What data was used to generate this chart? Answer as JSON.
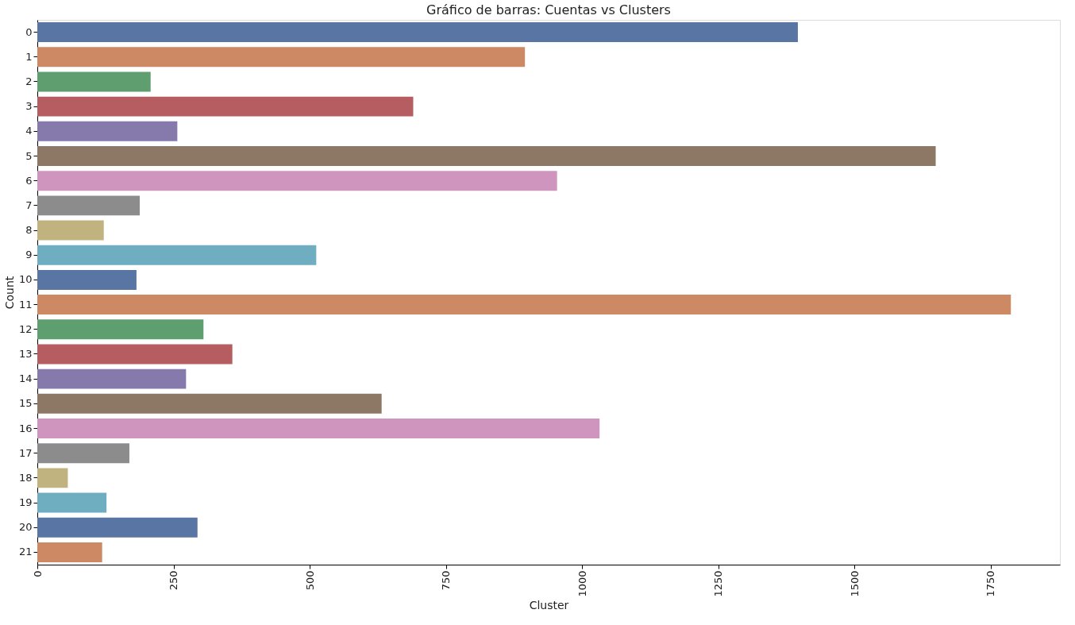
{
  "chart_data": {
    "type": "bar",
    "orientation": "horizontal",
    "title": "Gráfico de barras: Cuentas vs Clusters",
    "xlabel": "Cluster",
    "ylabel": "Count",
    "categories": [
      "0",
      "1",
      "2",
      "3",
      "4",
      "5",
      "6",
      "7",
      "8",
      "9",
      "10",
      "11",
      "12",
      "13",
      "14",
      "15",
      "16",
      "17",
      "18",
      "19",
      "20",
      "21"
    ],
    "values": [
      1396,
      895,
      208,
      690,
      257,
      1649,
      954,
      188,
      122,
      512,
      182,
      1787,
      305,
      358,
      273,
      632,
      1032,
      169,
      56,
      127,
      294,
      119
    ],
    "colors": [
      "#5875a4",
      "#cc8963",
      "#5f9e6e",
      "#b55d60",
      "#857aab",
      "#8d7866",
      "#d095bf",
      "#8c8c8c",
      "#c1b37f",
      "#6fadc0",
      "#5875a4",
      "#cc8963",
      "#5f9e6e",
      "#b55d60",
      "#857aab",
      "#8d7866",
      "#d095bf",
      "#8c8c8c",
      "#c1b37f",
      "#6fadc0",
      "#5875a4",
      "#cc8963"
    ],
    "xlim": [
      0,
      1877
    ],
    "xticks": [
      0,
      250,
      500,
      750,
      1000,
      1250,
      1500,
      1750
    ],
    "grid": false
  }
}
